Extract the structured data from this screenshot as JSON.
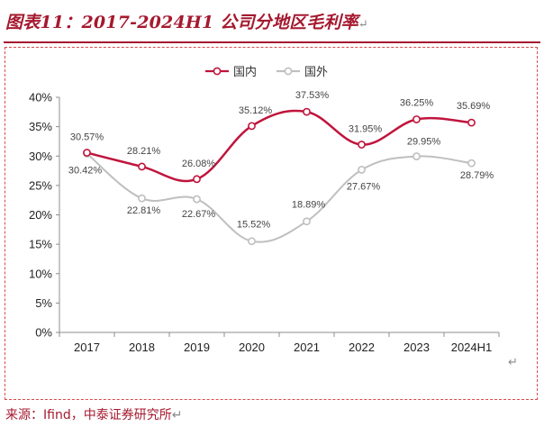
{
  "page": {
    "title": "图表11：2017-2024H1 公司分地区毛利率",
    "title_return_mark": "↵",
    "source": "来源：Ifind，中泰证券研究所",
    "source_return_mark": "↵",
    "chart_return_mark": "↵",
    "colors": {
      "accent": "#a5192f",
      "domestic": "#c0143c",
      "overseas": "#bfbfbf"
    }
  },
  "chart_data": {
    "type": "line",
    "categories": [
      "2017",
      "2018",
      "2019",
      "2020",
      "2021",
      "2022",
      "2023",
      "2024H1"
    ],
    "ylim": [
      0,
      40
    ],
    "yticks": [
      0,
      5,
      10,
      15,
      20,
      25,
      30,
      35,
      40
    ],
    "ytick_labels": [
      "0%",
      "5%",
      "10%",
      "15%",
      "20%",
      "25%",
      "30%",
      "35%",
      "40%"
    ],
    "grid": false,
    "legend_position": "top-center",
    "series": [
      {
        "name": "国内",
        "color": "#c0143c",
        "values": [
          30.57,
          28.21,
          26.08,
          35.12,
          37.53,
          31.95,
          36.25,
          35.69
        ],
        "labels": [
          "30.57%",
          "28.21%",
          "26.08%",
          "35.12%",
          "37.53%",
          "31.95%",
          "36.25%",
          "35.69%"
        ]
      },
      {
        "name": "国外",
        "color": "#bfbfbf",
        "values": [
          30.42,
          22.81,
          22.67,
          15.52,
          18.89,
          27.67,
          29.95,
          28.79
        ],
        "labels": [
          "30.42%",
          "22.81%",
          "22.67%",
          "15.52%",
          "18.89%",
          "27.67%",
          "29.95%",
          "28.79%"
        ]
      }
    ]
  }
}
